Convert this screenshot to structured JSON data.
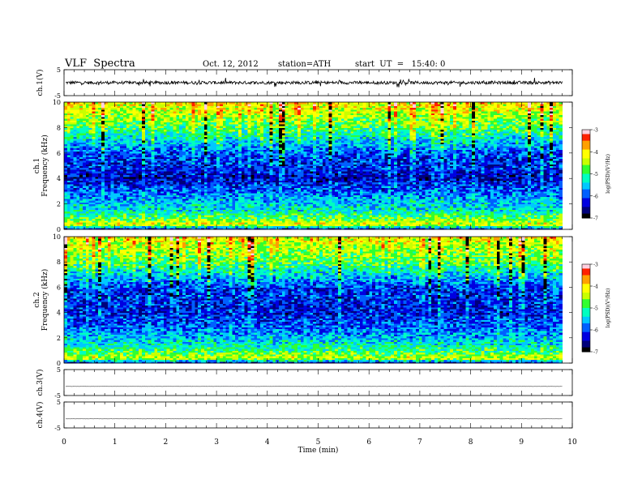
{
  "header": {
    "title": "VLF  Spectra",
    "date": "Oct. 12, 2012",
    "station": "station=ATH",
    "start": "start  UT  =   15:40: 0"
  },
  "colors": {
    "colormap": [
      "#000000",
      "#00007a",
      "#0000e0",
      "#0060ff",
      "#00c8ff",
      "#00ffc0",
      "#30ff30",
      "#c8ff00",
      "#ffff00",
      "#ffa000",
      "#ff2000",
      "#ffd0e0",
      "#ffffff"
    ],
    "trace": "#000000"
  },
  "chart_data": [
    {
      "type": "line",
      "name": "ch1-waveform",
      "ylabel": "ch.1(V)",
      "ylim": [
        -5,
        5
      ],
      "yticks": [
        "5",
        "-5"
      ],
      "xlim": [
        0,
        10
      ],
      "x_end": 9.8,
      "level": 0,
      "noise_amplitude": 1.0
    },
    {
      "type": "heatmap",
      "name": "ch1-spectrogram",
      "ylabel_lines": [
        "ch.1",
        "Frequency  (kHz)"
      ],
      "ylim": [
        0,
        10
      ],
      "yticks": [
        "0",
        "2",
        "4",
        "6",
        "8",
        "10"
      ],
      "xlim": [
        0,
        10
      ],
      "x_end": 9.8,
      "zlim": [
        -7,
        -3
      ],
      "colorbar_label": "log(PSD)(V²/Hz)",
      "colorbar_ticks": [
        "-3",
        "-4",
        "-5",
        "-6",
        "-7"
      ],
      "intensity_profile": [
        {
          "f": 0.0,
          "v": -6.5
        },
        {
          "f": 0.4,
          "v": -4.2
        },
        {
          "f": 0.9,
          "v": -4.8
        },
        {
          "f": 1.5,
          "v": -5.3
        },
        {
          "f": 2.5,
          "v": -5.7
        },
        {
          "f": 4.0,
          "v": -6.4
        },
        {
          "f": 6.0,
          "v": -6.0
        },
        {
          "f": 8.0,
          "v": -4.9
        },
        {
          "f": 10.0,
          "v": -4.1
        }
      ]
    },
    {
      "type": "heatmap",
      "name": "ch2-spectrogram",
      "ylabel_lines": [
        "ch.2",
        "Frequency  (kHz)"
      ],
      "ylim": [
        0,
        10
      ],
      "yticks": [
        "0",
        "2",
        "4",
        "6",
        "8",
        "10"
      ],
      "xlim": [
        0,
        10
      ],
      "x_end": 9.8,
      "zlim": [
        -7,
        -3
      ],
      "colorbar_label": "log(PSD)(V²/Hz)",
      "colorbar_ticks": [
        "-3",
        "-4",
        "-5",
        "-6",
        "-7"
      ],
      "intensity_profile": [
        {
          "f": 0.0,
          "v": -6.5
        },
        {
          "f": 0.4,
          "v": -4.3
        },
        {
          "f": 0.9,
          "v": -4.9
        },
        {
          "f": 1.5,
          "v": -5.3
        },
        {
          "f": 2.5,
          "v": -5.8
        },
        {
          "f": 4.0,
          "v": -6.3
        },
        {
          "f": 6.0,
          "v": -6.1
        },
        {
          "f": 8.0,
          "v": -4.9
        },
        {
          "f": 10.0,
          "v": -4.2
        }
      ]
    },
    {
      "type": "line",
      "name": "ch3-waveform",
      "ylabel": "ch.3(V)",
      "ylim": [
        -5,
        5
      ],
      "yticks": [
        "5",
        "-5"
      ],
      "xlim": [
        0,
        10
      ],
      "x_end": 9.8,
      "level": -1.5,
      "noise_amplitude": 0.05
    },
    {
      "type": "line",
      "name": "ch4-waveform",
      "ylabel": "ch.4(V)",
      "ylim": [
        -5,
        5
      ],
      "yticks": [
        "5",
        "-5"
      ],
      "xlim": [
        0,
        10
      ],
      "x_end": 9.8,
      "level": -1.5,
      "noise_amplitude": 0.05
    }
  ],
  "x_axis": {
    "label": "Time  (min)",
    "ticks": [
      "0",
      "1",
      "2",
      "3",
      "4",
      "5",
      "6",
      "7",
      "8",
      "9",
      "10"
    ]
  }
}
